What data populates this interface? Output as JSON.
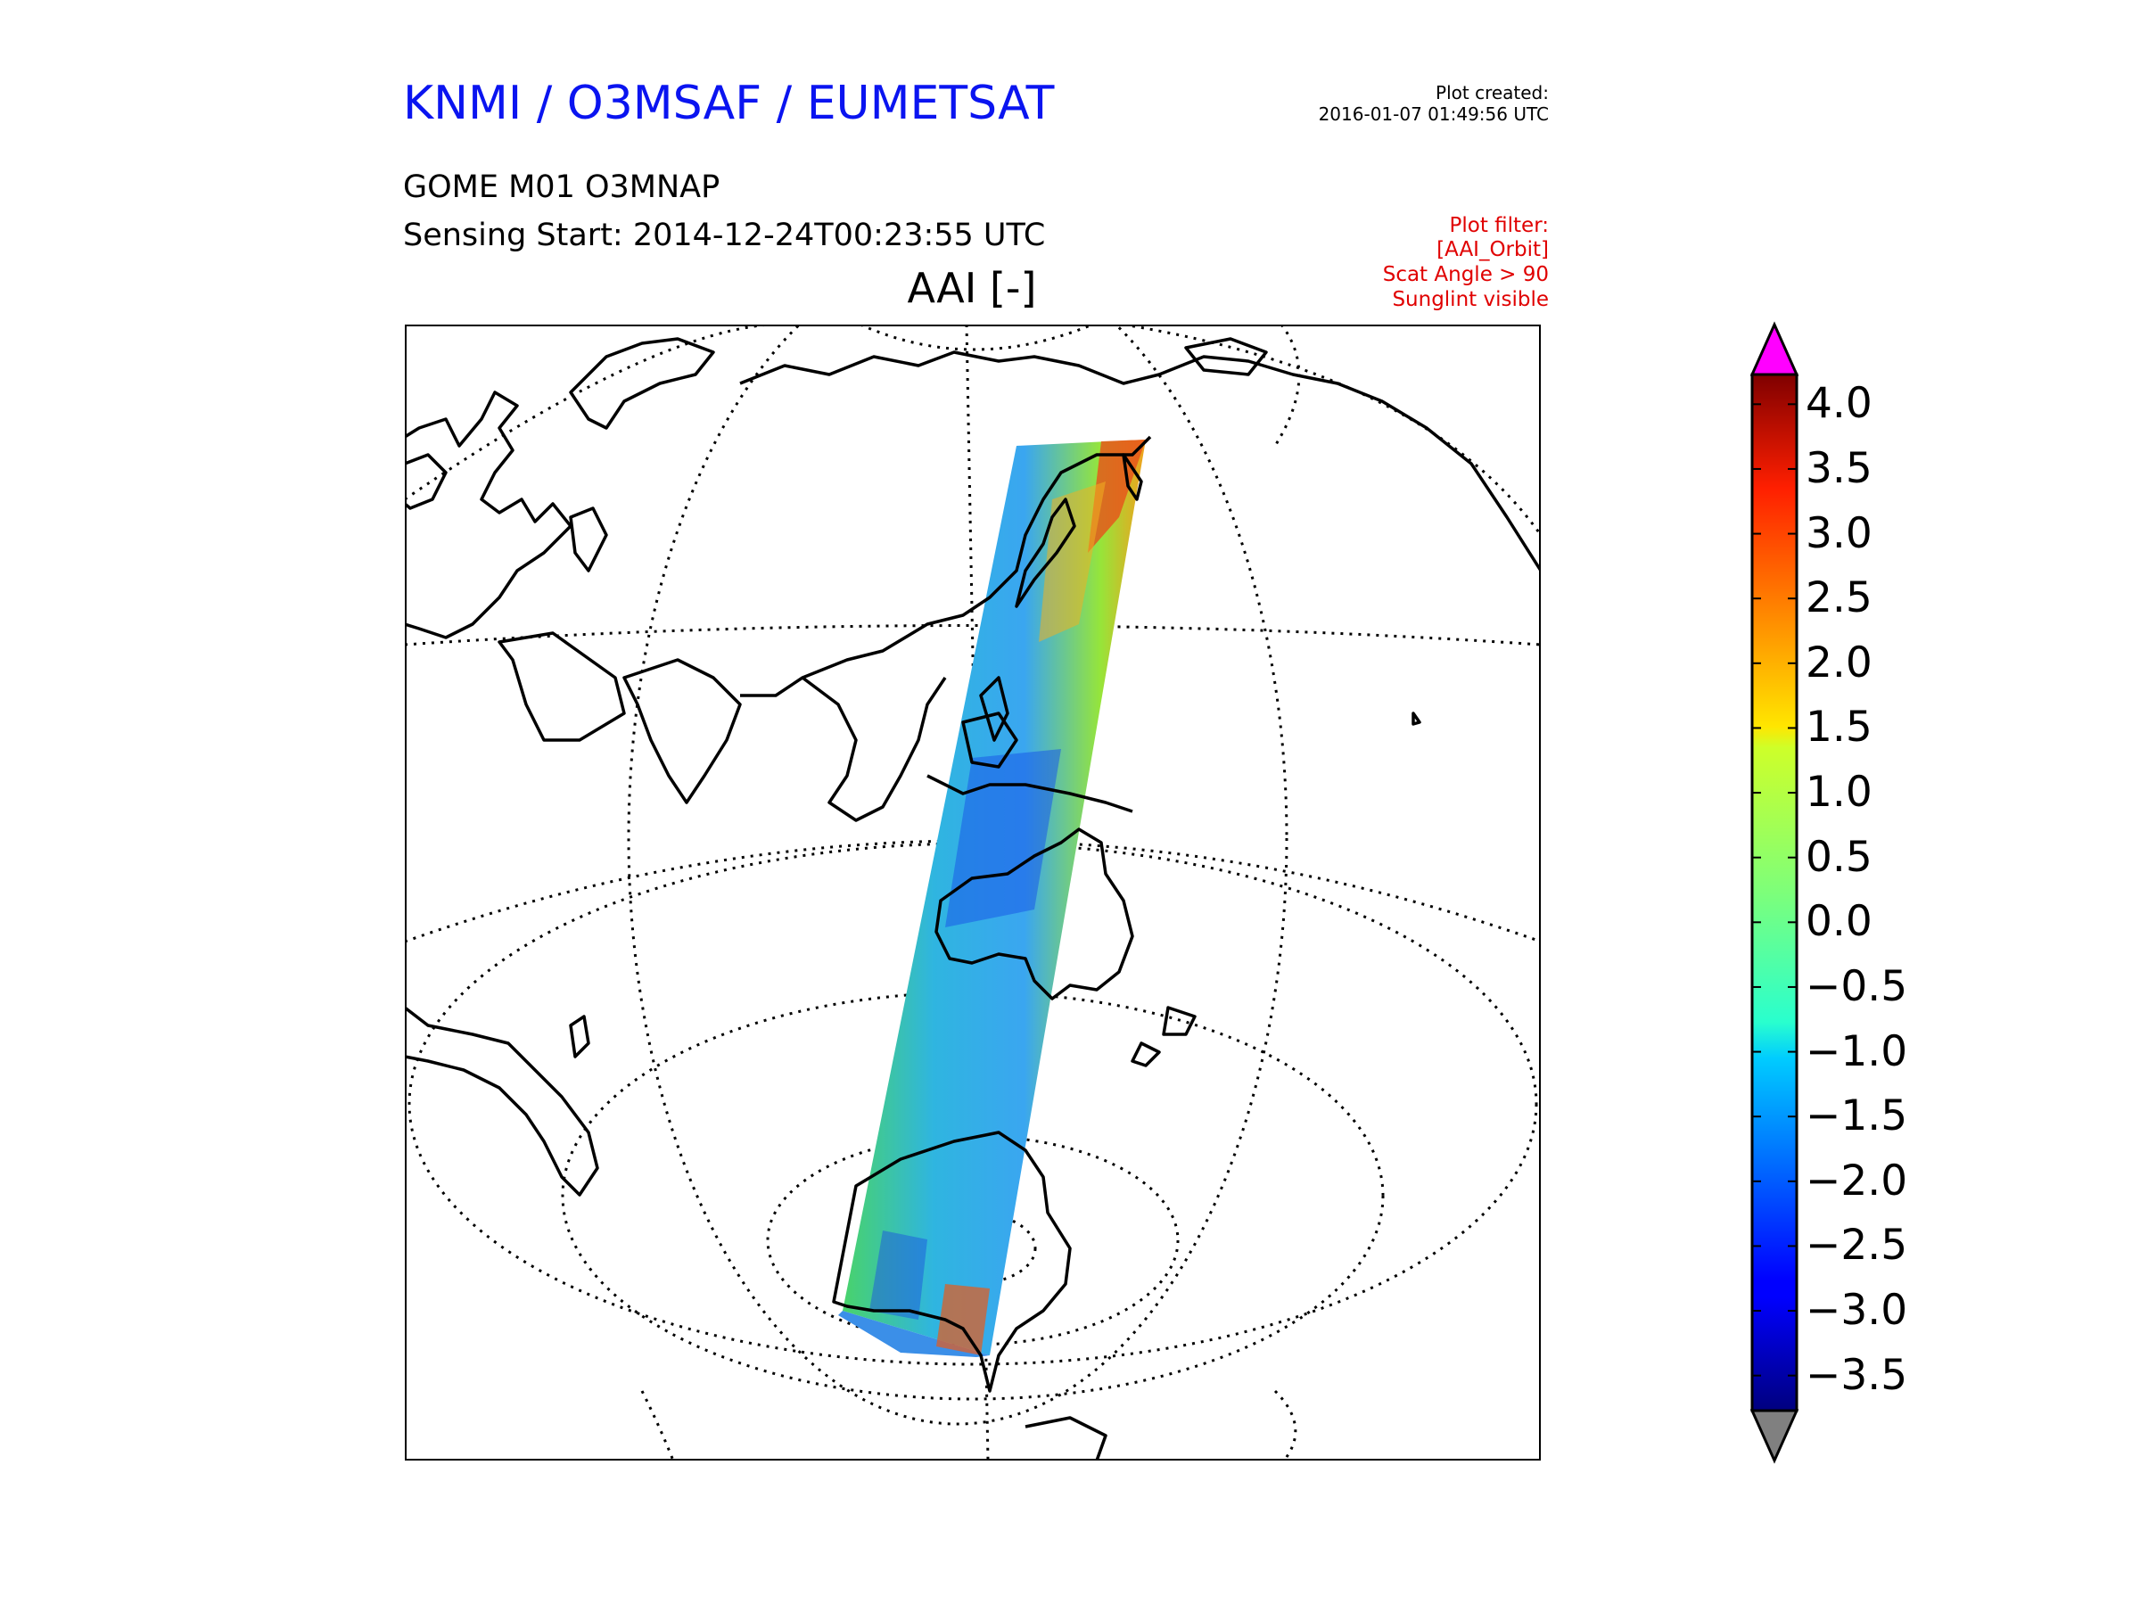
{
  "header": {
    "title": "KNMI / O3MSAF / EUMETSAT",
    "title_color": "#0a14f0",
    "plot_created_label": "Plot created:",
    "plot_created_time": "2016-01-07 01:49:56 UTC",
    "product": "GOME M01 O3MNAP",
    "sensing_start": "Sensing Start: 2014-12-24T00:23:55 UTC"
  },
  "filter": {
    "color": "#e00000",
    "lines": [
      "Plot filter:",
      "[AAI_Orbit]",
      "Scat Angle > 90",
      "Sunglint visible"
    ]
  },
  "map": {
    "title": "AAI [-]",
    "projection": "near-sided perspective",
    "coastline_color": "#000000",
    "graticule_style": "dotted"
  },
  "colorbar": {
    "ticks": [
      "4.0",
      "3.5",
      "3.0",
      "2.5",
      "2.0",
      "1.5",
      "1.0",
      "0.5",
      "0.0",
      "−0.5",
      "−1.0",
      "−1.5",
      "−2.0",
      "−2.5",
      "−3.0",
      "−3.5"
    ],
    "range": [
      -3.5,
      4.0
    ],
    "over_color": "#ff00ff",
    "under_color": "#808080",
    "colormap": "jet"
  }
}
